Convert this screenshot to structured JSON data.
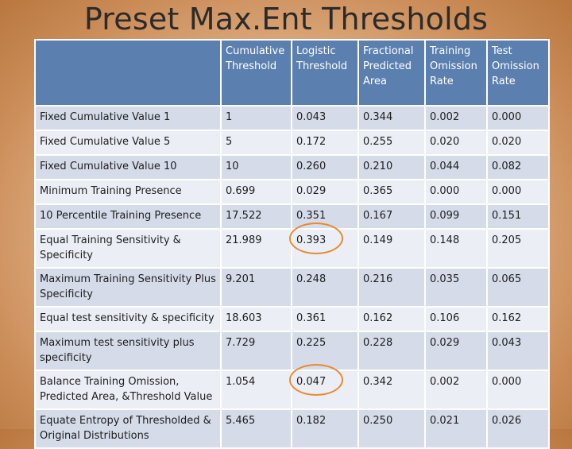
{
  "title": "Preset Max.Ent Thresholds",
  "table": {
    "headers": [
      "",
      "Cumulative Threshold",
      "Logistic Threshold",
      "Fractional Predicted Area",
      "Training Omission Rate",
      "Test Omission Rate"
    ],
    "rows": [
      [
        "Fixed Cumulative Value 1",
        "1",
        "0.043",
        "0.344",
        "0.002",
        "0.000"
      ],
      [
        "Fixed Cumulative Value 5",
        "5",
        "0.172",
        "0.255",
        "0.020",
        "0.020"
      ],
      [
        "Fixed Cumulative Value 10",
        "10",
        "0.260",
        "0.210",
        "0.044",
        "0.082"
      ],
      [
        "Minimum Training  Presence",
        "0.699",
        "0.029",
        "0.365",
        "0.000",
        "0.000"
      ],
      [
        "10 Percentile Training Presence",
        "17.522",
        "0.351",
        "0.167",
        "0.099",
        "0.151"
      ],
      [
        "Equal Training Sensitivity & Specificity",
        "21.989",
        "0.393",
        "0.149",
        "0.148",
        "0.205"
      ],
      [
        "Maximum Training Sensitivity Plus Specificity",
        "9.201",
        "0.248",
        "0.216",
        "0.035",
        "0.065"
      ],
      [
        "Equal test sensitivity & specificity",
        "18.603",
        "0.361",
        "0.162",
        "0.106",
        "0.162"
      ],
      [
        "Maximum  test sensitivity plus specificity",
        "7.729",
        "0.225",
        "0.228",
        "0.029",
        "0.043"
      ],
      [
        "Balance Training Omission, Predicted Area, &Threshold Value",
        "1.054",
        "0.047",
        "0.342",
        "0.002",
        "0.000"
      ],
      [
        "Equate Entropy of Thresholded & Original Distributions",
        "5.465",
        "0.182",
        "0.250",
        "0.021",
        "0.026"
      ]
    ]
  },
  "highlights": {
    "color": "#e88a2e",
    "cells": [
      "0.393",
      "0.047"
    ]
  }
}
